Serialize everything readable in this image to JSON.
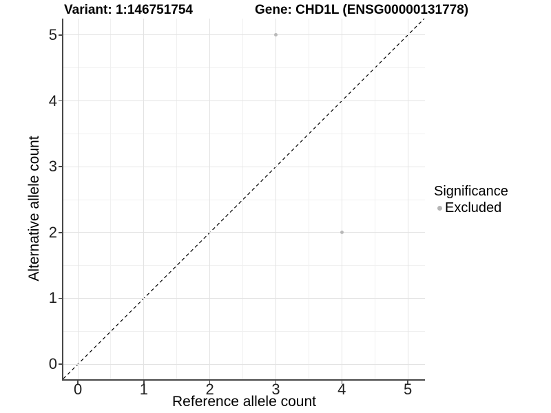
{
  "titles": {
    "left": "Variant: 1:146751754",
    "right": "Gene: CHD1L (ENSG00000131778)"
  },
  "chart_data": {
    "type": "scatter",
    "title_left": "Variant: 1:146751754",
    "title_right": "Gene: CHD1L (ENSG00000131778)",
    "xlabel": "Reference allele count",
    "ylabel": "Alternative allele count",
    "x_ticks": [
      0,
      1,
      2,
      3,
      4,
      5
    ],
    "y_ticks": [
      0,
      1,
      2,
      3,
      4,
      5
    ],
    "xlim": [
      -0.22,
      5.26
    ],
    "ylim": [
      -0.25,
      5.25
    ],
    "grid": {
      "major": true,
      "minor": true
    },
    "points": [
      {
        "x": 3,
        "y": 5,
        "series": "Excluded"
      },
      {
        "x": 4,
        "y": 2,
        "series": "Excluded"
      }
    ],
    "identity_line": {
      "style": "dashed",
      "slope": 1,
      "intercept": 0,
      "color": "#000000"
    },
    "legend": {
      "position": "right",
      "title": "Significance",
      "items": [
        {
          "label": "Excluded",
          "color": "#b5b5b5"
        }
      ]
    },
    "colors": {
      "point": "#b9b9b9",
      "grid_major": "#e3e3e3",
      "grid_minor": "#f0f0f0",
      "axis": "#474747",
      "tick_text": "#1f1f1f",
      "title_text": "#000000"
    },
    "marker_diameter_px": 5
  }
}
